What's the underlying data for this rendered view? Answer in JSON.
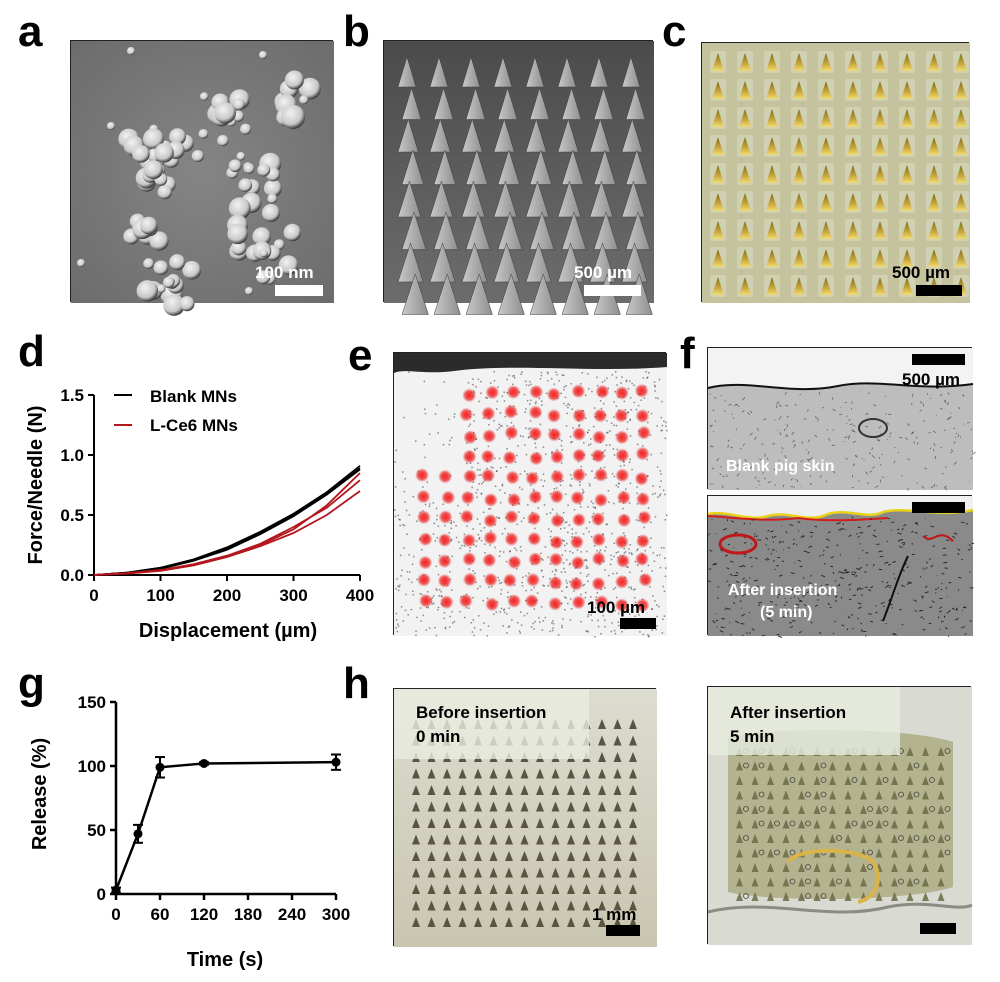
{
  "panels": {
    "a": {
      "letter": "a",
      "scale": "100 nm"
    },
    "b": {
      "letter": "b",
      "scale": "500 µm"
    },
    "c": {
      "letter": "c",
      "scale": "500 µm"
    },
    "d": {
      "letter": "d"
    },
    "e": {
      "letter": "e",
      "scale": "100 µm"
    },
    "f": {
      "letter": "f",
      "scale": "500 µm",
      "top_label": "Blank pig skin",
      "bottom_label_1": "After insertion",
      "bottom_label_2": "(5 min)"
    },
    "g": {
      "letter": "g"
    },
    "h": {
      "letter": "h",
      "left_label_1": "Before insertion",
      "left_label_2": "0 min",
      "left_scale": "1 mm",
      "right_label_1": "After insertion",
      "right_label_2": "5 min"
    }
  },
  "colors": {
    "blank": "#000000",
    "lce6": "#b3161c",
    "red_stain": "#ff2a2a"
  },
  "chart_data": [
    {
      "type": "line",
      "panel": "d",
      "xlabel": "Displacement (µm)",
      "ylabel": "Force/Needle (N)",
      "xlim": [
        0,
        400
      ],
      "ylim": [
        0,
        1.5
      ],
      "xticks": [
        "0",
        "100",
        "200",
        "300",
        "400"
      ],
      "yticks": [
        "0.0",
        "0.5",
        "1.0",
        "1.5"
      ],
      "legend": [
        "Blank MNs",
        "L-Ce6 MNs"
      ],
      "x": [
        0,
        50,
        100,
        150,
        200,
        250,
        300,
        350,
        400
      ],
      "series": [
        {
          "name": "Blank MNs",
          "group": "blank",
          "values": [
            0,
            0.02,
            0.06,
            0.13,
            0.23,
            0.36,
            0.51,
            0.69,
            0.91
          ]
        },
        {
          "name": "Blank MNs",
          "group": "blank",
          "values": [
            0,
            0.02,
            0.06,
            0.12,
            0.22,
            0.35,
            0.5,
            0.68,
            0.89
          ]
        },
        {
          "name": "Blank MNs",
          "group": "blank",
          "values": [
            0,
            0.02,
            0.05,
            0.12,
            0.21,
            0.34,
            0.49,
            0.67,
            0.88
          ]
        },
        {
          "name": "L-Ce6 MNs",
          "group": "lce6",
          "values": [
            0,
            0.015,
            0.04,
            0.09,
            0.16,
            0.25,
            0.38,
            0.58,
            0.85
          ]
        },
        {
          "name": "L-Ce6 MNs",
          "group": "lce6",
          "values": [
            0,
            0.015,
            0.04,
            0.09,
            0.16,
            0.26,
            0.4,
            0.56,
            0.79
          ]
        },
        {
          "name": "L-Ce6 MNs",
          "group": "lce6",
          "values": [
            0,
            0.012,
            0.035,
            0.08,
            0.15,
            0.24,
            0.35,
            0.5,
            0.7
          ]
        }
      ]
    },
    {
      "type": "line",
      "panel": "g",
      "xlabel": "Time (s)",
      "ylabel": "Release (%)",
      "xlim": [
        0,
        300
      ],
      "ylim": [
        0,
        150
      ],
      "xticks": [
        "0",
        "60",
        "120",
        "180",
        "240",
        "300"
      ],
      "yticks": [
        "0",
        "50",
        "100",
        "150"
      ],
      "x": [
        0,
        30,
        60,
        120,
        300
      ],
      "values": [
        3,
        47,
        99,
        102,
        103
      ],
      "errors": [
        2,
        7,
        8,
        1,
        6
      ]
    }
  ]
}
